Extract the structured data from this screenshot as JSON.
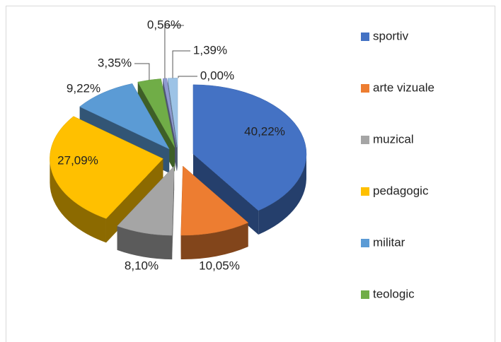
{
  "chart_data": {
    "type": "pie3d",
    "categories": [
      "sportiv",
      "arte vizuale",
      "muzical",
      "pedagogic",
      "militar",
      "teologic",
      null,
      null,
      null
    ],
    "values": [
      40.22,
      10.05,
      8.1,
      27.09,
      9.22,
      3.35,
      0.56,
      1.39,
      0.0
    ],
    "value_labels": [
      "40,22%",
      "10,05%",
      "8,10%",
      "27,09%",
      "9,22%",
      "3,35%",
      "0,56%",
      "1,39%",
      "0,00%"
    ],
    "colors": [
      "#4472c4",
      "#ed7d31",
      "#a5a5a5",
      "#ffc000",
      "#5b9bd5",
      "#70ad47",
      "#8e9ad0",
      "#9dc3e6",
      "#f4b183"
    ],
    "legend": "right"
  }
}
